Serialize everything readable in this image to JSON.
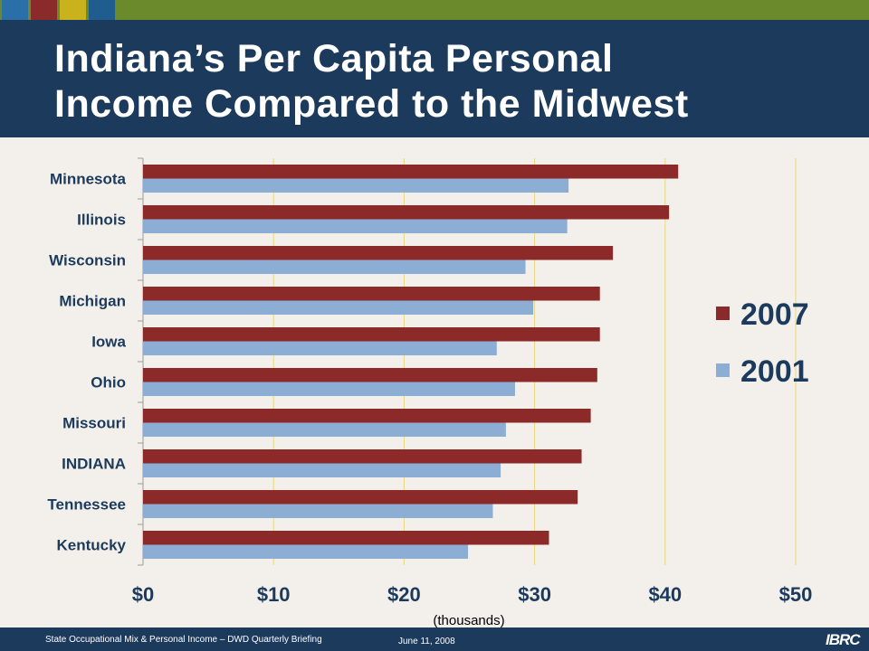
{
  "slide": {
    "title_line1": "Indiana’s Per Capita Personal",
    "title_line2": "Income Compared to the Midwest",
    "footer_text": "State Occupational Mix & Personal Income – DWD Quarterly Briefing",
    "footer_date": "June 11, 2008",
    "footer_logo": "IBRC",
    "colors": {
      "header": "#1c3a5c",
      "accent_bar": "#6b8a2c",
      "squares": [
        "#2a6fa8",
        "#8b2a2a",
        "#c9b21c",
        "#1f5d8f"
      ]
    }
  },
  "chart_data": {
    "type": "bar",
    "orientation": "horizontal",
    "categories": [
      "Minnesota",
      "Illinois",
      "Wisconsin",
      "Michigan",
      "Iowa",
      "Ohio",
      "Missouri",
      "INDIANA",
      "Tennessee",
      "Kentucky"
    ],
    "series": [
      {
        "name": "2007",
        "color": "#8b2a28",
        "values": [
          41.0,
          40.3,
          36.0,
          35.0,
          35.0,
          34.8,
          34.3,
          33.6,
          33.3,
          31.1
        ]
      },
      {
        "name": "2001",
        "color": "#8caed4",
        "values": [
          32.6,
          32.5,
          29.3,
          29.9,
          27.1,
          28.5,
          27.8,
          27.4,
          26.8,
          24.9
        ]
      }
    ],
    "xlim": [
      0,
      50
    ],
    "xticks": [
      "$0",
      "$10",
      "$20",
      "$30",
      "$40",
      "$50"
    ],
    "xlabel": "(thousands)",
    "ylabel": "",
    "grid": "vertical",
    "legend_position": "right"
  }
}
